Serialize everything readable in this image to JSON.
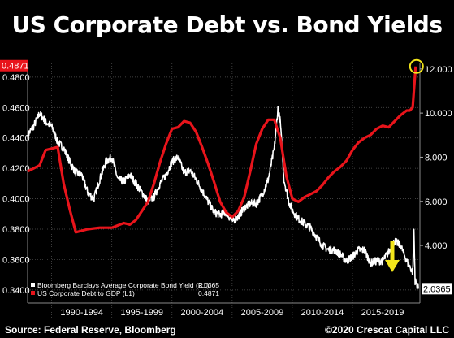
{
  "title": "US Corporate Debt vs. Bond Yields",
  "footer": {
    "source": "Source: Federal Reserve, Bloomberg",
    "copyright": "©2020 Crescat Capital LLC"
  },
  "colors": {
    "background": "#000000",
    "debt_series": "#e8141b",
    "yield_series": "#ffffff",
    "annotation": "#f2e51a",
    "grid": "#555555"
  },
  "chart_data": {
    "type": "line",
    "x_tick_labels": [
      "1990-1994",
      "1995-1999",
      "2000-2004",
      "2005-2009",
      "2010-2014",
      "2015-2019"
    ],
    "xlim": [
      1988,
      2020.6
    ],
    "left_axis": {
      "ticks": [
        "0.3400",
        "0.3600",
        "0.3800",
        "0.4000",
        "0.4200",
        "0.4400",
        "0.4600",
        "0.4800"
      ],
      "ylim": [
        0.333,
        0.489
      ],
      "last_value_label": "0.4871"
    },
    "right_axis": {
      "ticks": [
        "4.000",
        "6.000",
        "8.000",
        "10.000",
        "12.000"
      ],
      "ylim": [
        1.5,
        12.25
      ],
      "last_value_label": "2.0365"
    },
    "grid": true,
    "legend_position": "bottom-left",
    "series": [
      {
        "name": "Bloomberg Barclays Average Corporate Bond Yield (R1)",
        "last_value": "2.0365",
        "axis": "right",
        "x": [
          1988.0,
          1988.5,
          1989.0,
          1989.5,
          1990.0,
          1990.5,
          1991.0,
          1991.5,
          1992.0,
          1992.5,
          1993.0,
          1993.5,
          1994.0,
          1994.5,
          1995.0,
          1995.5,
          1996.0,
          1996.5,
          1997.0,
          1997.5,
          1998.0,
          1998.5,
          1999.0,
          1999.5,
          2000.0,
          2000.5,
          2001.0,
          2001.5,
          2002.0,
          2002.5,
          2003.0,
          2003.5,
          2004.0,
          2004.5,
          2005.0,
          2005.5,
          2006.0,
          2006.5,
          2007.0,
          2007.5,
          2008.0,
          2008.5,
          2008.8,
          2009.0,
          2009.3,
          2009.7,
          2010.0,
          2010.5,
          2011.0,
          2011.5,
          2012.0,
          2012.5,
          2013.0,
          2013.5,
          2014.0,
          2014.5,
          2015.0,
          2015.5,
          2016.0,
          2016.5,
          2017.0,
          2017.5,
          2018.0,
          2018.5,
          2019.0,
          2019.5,
          2020.0,
          2020.1,
          2020.2,
          2020.5
        ],
        "values": [
          9.0,
          9.4,
          10.0,
          9.6,
          9.4,
          8.7,
          8.4,
          7.8,
          7.3,
          7.2,
          6.4,
          6.1,
          7.0,
          7.8,
          8.0,
          7.0,
          6.9,
          7.2,
          6.8,
          6.4,
          6.0,
          6.2,
          6.8,
          7.2,
          7.8,
          8.0,
          7.3,
          7.4,
          7.0,
          6.5,
          6.0,
          5.5,
          5.4,
          5.5,
          5.1,
          5.3,
          5.7,
          5.9,
          5.9,
          6.3,
          7.0,
          8.4,
          10.2,
          9.6,
          7.0,
          6.0,
          5.6,
          5.2,
          5.0,
          4.8,
          4.4,
          4.0,
          3.8,
          3.8,
          3.6,
          3.3,
          3.5,
          3.8,
          3.8,
          3.2,
          3.3,
          3.3,
          3.7,
          4.2,
          4.0,
          3.3,
          2.8,
          4.7,
          2.4,
          2.04
        ]
      },
      {
        "name": "US Corporate Debt to GDP (L1)",
        "last_value": "0.4871",
        "axis": "left",
        "x": [
          1988.0,
          1989.0,
          1989.5,
          1990.5,
          1991.0,
          1991.5,
          1992.0,
          1993.0,
          1994.0,
          1995.0,
          1996.0,
          1996.5,
          1997.0,
          1997.5,
          1998.0,
          1998.5,
          1999.0,
          1999.5,
          2000.0,
          2000.5,
          2001.0,
          2001.5,
          2002.0,
          2002.5,
          2003.0,
          2003.5,
          2004.0,
          2004.5,
          2005.0,
          2005.5,
          2006.0,
          2006.5,
          2007.0,
          2007.5,
          2008.0,
          2008.5,
          2009.0,
          2009.5,
          2010.0,
          2010.5,
          2011.0,
          2011.5,
          2012.0,
          2012.5,
          2013.0,
          2013.5,
          2014.0,
          2014.5,
          2015.0,
          2015.5,
          2016.0,
          2016.5,
          2017.0,
          2017.5,
          2018.0,
          2018.5,
          2019.0,
          2019.5,
          2019.75,
          2020.0,
          2020.25
        ],
        "values": [
          0.418,
          0.422,
          0.432,
          0.434,
          0.41,
          0.393,
          0.378,
          0.38,
          0.381,
          0.381,
          0.384,
          0.383,
          0.386,
          0.392,
          0.398,
          0.41,
          0.424,
          0.436,
          0.446,
          0.447,
          0.451,
          0.45,
          0.444,
          0.434,
          0.423,
          0.411,
          0.398,
          0.391,
          0.388,
          0.392,
          0.401,
          0.418,
          0.436,
          0.446,
          0.452,
          0.452,
          0.44,
          0.415,
          0.4,
          0.398,
          0.401,
          0.403,
          0.405,
          0.409,
          0.414,
          0.418,
          0.421,
          0.425,
          0.432,
          0.437,
          0.44,
          0.442,
          0.446,
          0.448,
          0.447,
          0.451,
          0.455,
          0.458,
          0.458,
          0.46,
          0.487
        ]
      }
    ]
  }
}
